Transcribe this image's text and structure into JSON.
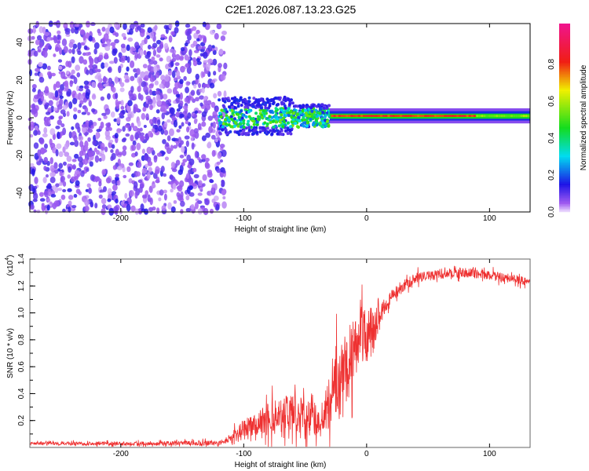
{
  "chart_data": [
    {
      "type": "heatmap",
      "title": "C2E1.2026.087.13.23.G25",
      "xlabel": "Height of straight line (km)",
      "ylabel": "Frequency (Hz)",
      "xlim": [
        -274,
        133
      ],
      "ylim": [
        -50,
        50
      ],
      "xticks": [
        -200,
        -100,
        0,
        100
      ],
      "yticks": [
        40,
        20,
        0,
        -20,
        -40
      ],
      "colorbar": {
        "label": "Normalized spectral amplitude",
        "ticks": [
          "0.0",
          "0.2",
          "0.4",
          "0.6",
          "0.8"
        ],
        "range": [
          0,
          1
        ]
      },
      "regions": [
        {
          "x": [
            -274,
            -115
          ],
          "freq": [
            -50,
            50
          ],
          "amplitude": [
            0.0,
            0.15
          ],
          "description_kind": "scatter"
        },
        {
          "x": [
            -120,
            -30
          ],
          "freq": [
            -8,
            8
          ],
          "amplitude": [
            0.1,
            0.55
          ],
          "description_kind": "band"
        },
        {
          "x": [
            -30,
            133
          ],
          "freq": [
            -2,
            4
          ],
          "amplitude": [
            0.3,
            0.9
          ],
          "description_kind": "narrow-band"
        }
      ]
    },
    {
      "type": "line",
      "xlabel": "Height of straight line (km)",
      "ylabel": "SNR (10 * v/v)",
      "yscale_label": "(x10",
      "yscale_exp": "4",
      "xlim": [
        -274,
        133
      ],
      "ylim": [
        0,
        1.4
      ],
      "xticks": [
        -200,
        -100,
        0,
        100
      ],
      "yticks": [
        "0.2",
        "0.4",
        "0.6",
        "0.8",
        "1.0",
        "1.2",
        "1.4"
      ],
      "color": "#ee3030",
      "points": [
        [
          -274,
          0.03
        ],
        [
          -120,
          0.03
        ],
        [
          -110,
          0.07
        ],
        [
          -100,
          0.13
        ],
        [
          -80,
          0.22
        ],
        [
          -60,
          0.27
        ],
        [
          -50,
          0.22
        ],
        [
          -40,
          0.2
        ],
        [
          -30,
          0.32
        ],
        [
          -25,
          0.5
        ],
        [
          -20,
          0.5
        ],
        [
          -15,
          0.65
        ],
        [
          -10,
          0.72
        ],
        [
          -5,
          0.85
        ],
        [
          0,
          0.82
        ],
        [
          5,
          0.88
        ],
        [
          10,
          0.98
        ],
        [
          15,
          1.05
        ],
        [
          20,
          1.12
        ],
        [
          30,
          1.2
        ],
        [
          40,
          1.26
        ],
        [
          60,
          1.29
        ],
        [
          80,
          1.3
        ],
        [
          100,
          1.28
        ],
        [
          120,
          1.25
        ],
        [
          133,
          1.23
        ]
      ],
      "noise": [
        [
          -274,
          0.01
        ],
        [
          -115,
          0.02
        ],
        [
          -100,
          0.08
        ],
        [
          -60,
          0.15
        ],
        [
          -35,
          0.12
        ],
        [
          -25,
          0.3
        ],
        [
          -10,
          0.25
        ],
        [
          5,
          0.2
        ],
        [
          15,
          0.05
        ],
        [
          40,
          0.04
        ],
        [
          133,
          0.03
        ]
      ]
    }
  ]
}
